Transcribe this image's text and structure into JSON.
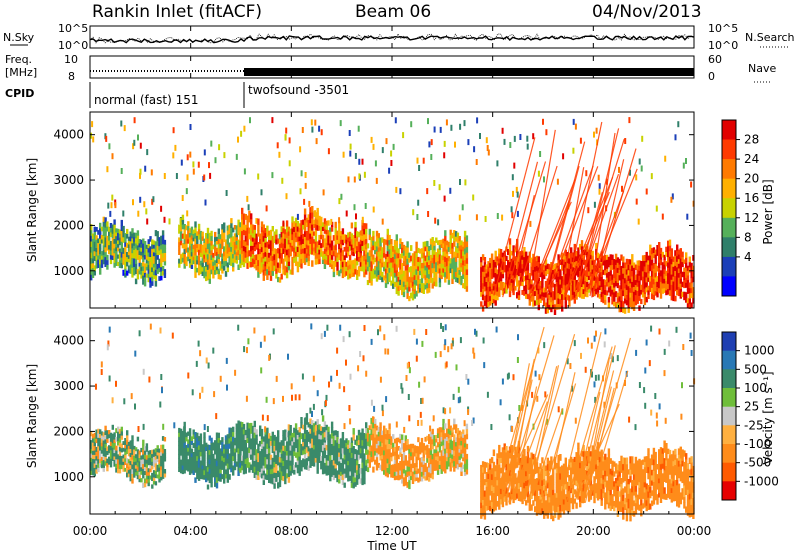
{
  "header": {
    "station": "Rankin Inlet (fitACF)",
    "beam": "Beam 06",
    "date": "04/Nov/2013"
  },
  "aux_panels": {
    "nsky_label": "N.Sky",
    "nsearch_label": "N.Search",
    "freq_label_1": "Freq.",
    "freq_label_2": "[MHz]",
    "nave_label": "Nave",
    "cpid_label": "CPID",
    "noise_ticks_left": [
      "10^5",
      "10^0"
    ],
    "noise_ticks_right": [
      "10^5",
      "10^0"
    ],
    "freq_ticks": [
      "10",
      "8"
    ],
    "nave_ticks": [
      "60",
      "0"
    ],
    "cpid_segments": [
      {
        "start_hour": 0.0,
        "end_hour": 6.0,
        "label": "normal (fast) 151"
      },
      {
        "start_hour": 6.0,
        "end_hour": 24.0,
        "label": "twofsound -3501"
      }
    ]
  },
  "x_axis": {
    "label": "Time UT",
    "ticks": [
      "00:00",
      "04:00",
      "08:00",
      "12:00",
      "16:00",
      "20:00",
      "00:00"
    ]
  },
  "power_colorbar": {
    "label": "Power [dB]",
    "ticks": [
      "28",
      "24",
      "20",
      "16",
      "12",
      "8",
      "4"
    ],
    "colors": [
      "#e10000",
      "#ff3a00",
      "#ff7a00",
      "#ffb000",
      "#c8d200",
      "#55b05a",
      "#2f7f6a",
      "#1b3fb8",
      "#0000ff"
    ]
  },
  "velocity_colorbar": {
    "label": "Velocity [m s⁻¹]",
    "ticks": [
      "1000",
      "500",
      "100",
      "25",
      "-25",
      "-100",
      "-500",
      "-1000"
    ],
    "colors": [
      "#1f3fb2",
      "#2878b5",
      "#3a8a6a",
      "#6fbe3a",
      "#c8c8c8",
      "#ffb040",
      "#ff8c1a",
      "#ff5a00",
      "#e60000"
    ]
  },
  "chart_data": [
    {
      "type": "heatmap",
      "title": "Power",
      "xlabel": "Time UT",
      "ylabel": "Slant Range [km]",
      "x_range_hours": [
        0,
        24
      ],
      "ylim": [
        180,
        4500
      ],
      "yticks": [
        1000,
        2000,
        3000,
        4000
      ],
      "colorbar": "Power [dB]",
      "color_range": [
        0,
        30
      ],
      "echo_regions": [
        {
          "t_start": 0.0,
          "t_end": 3.0,
          "range_low_km": 900,
          "range_high_km": 1900,
          "value": 14
        },
        {
          "t_start": 3.5,
          "t_end": 6.0,
          "range_low_km": 1000,
          "range_high_km": 2000,
          "value": 18
        },
        {
          "t_start": 6.0,
          "t_end": 11.0,
          "range_low_km": 1000,
          "range_high_km": 2100,
          "value": 24
        },
        {
          "t_start": 11.0,
          "t_end": 15.0,
          "range_low_km": 600,
          "range_high_km": 1700,
          "value": 20
        },
        {
          "t_start": 15.5,
          "t_end": 24.0,
          "range_low_km": 300,
          "range_high_km": 1400,
          "value": 28
        }
      ]
    },
    {
      "type": "heatmap",
      "title": "Velocity",
      "xlabel": "Time UT",
      "ylabel": "Slant Range [km]",
      "x_range_hours": [
        0,
        24
      ],
      "ylim": [
        180,
        4500
      ],
      "yticks": [
        1000,
        2000,
        3000,
        4000
      ],
      "colorbar": "Velocity [m s⁻¹]",
      "color_range": [
        -1000,
        1000
      ],
      "echo_regions": [
        {
          "t_start": 0.0,
          "t_end": 3.0,
          "range_low_km": 1000,
          "range_high_km": 1900,
          "value": 100
        },
        {
          "t_start": 3.5,
          "t_end": 6.0,
          "range_low_km": 1000,
          "range_high_km": 2000,
          "value": 300
        },
        {
          "t_start": 6.0,
          "t_end": 11.0,
          "range_low_km": 1000,
          "range_high_km": 2100,
          "value": 200
        },
        {
          "t_start": 11.0,
          "t_end": 15.0,
          "range_low_km": 1000,
          "range_high_km": 2000,
          "value": -150
        },
        {
          "t_start": 15.5,
          "t_end": 24.0,
          "range_low_km": 300,
          "range_high_km": 1500,
          "value": -300
        }
      ]
    }
  ]
}
